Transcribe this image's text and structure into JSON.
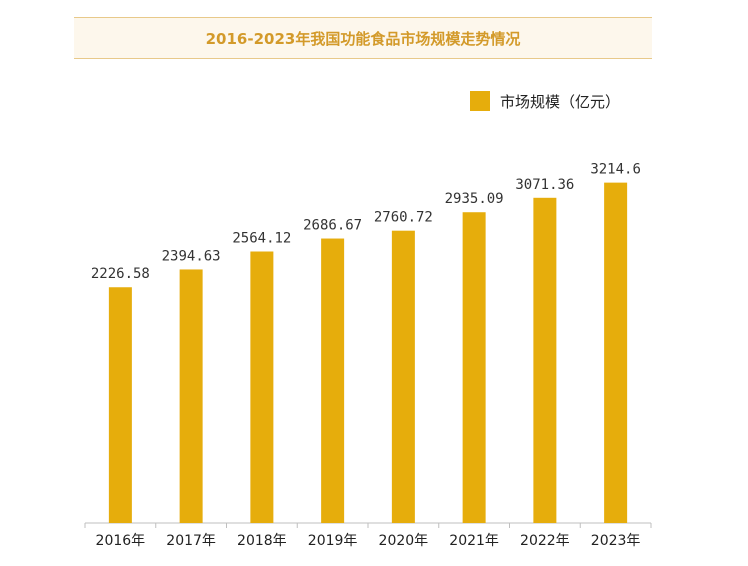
{
  "colors": {
    "bar": "#e6ad0c",
    "title": "#d39a2a",
    "title_bg": "#fdf7ec"
  },
  "chart_data": {
    "type": "bar",
    "title": "2016-2023年我国功能食品市场规模走势情况",
    "categories": [
      "2016年",
      "2017年",
      "2018年",
      "2019年",
      "2020年",
      "2021年",
      "2022年",
      "2023年"
    ],
    "series": [
      {
        "name": "市场规模（亿元）",
        "values": [
          2226.58,
          2394.63,
          2564.12,
          2686.67,
          2760.72,
          2935.09,
          3071.36,
          3214.6
        ],
        "labels": [
          "2226.58",
          "2394.63",
          "2564.12",
          "2686.67",
          "2760.72",
          "2935.09",
          "3071.36",
          "3214.6"
        ]
      }
    ],
    "ylim": [
      0,
      3400
    ],
    "grid": false,
    "legend_position": "top-right"
  }
}
